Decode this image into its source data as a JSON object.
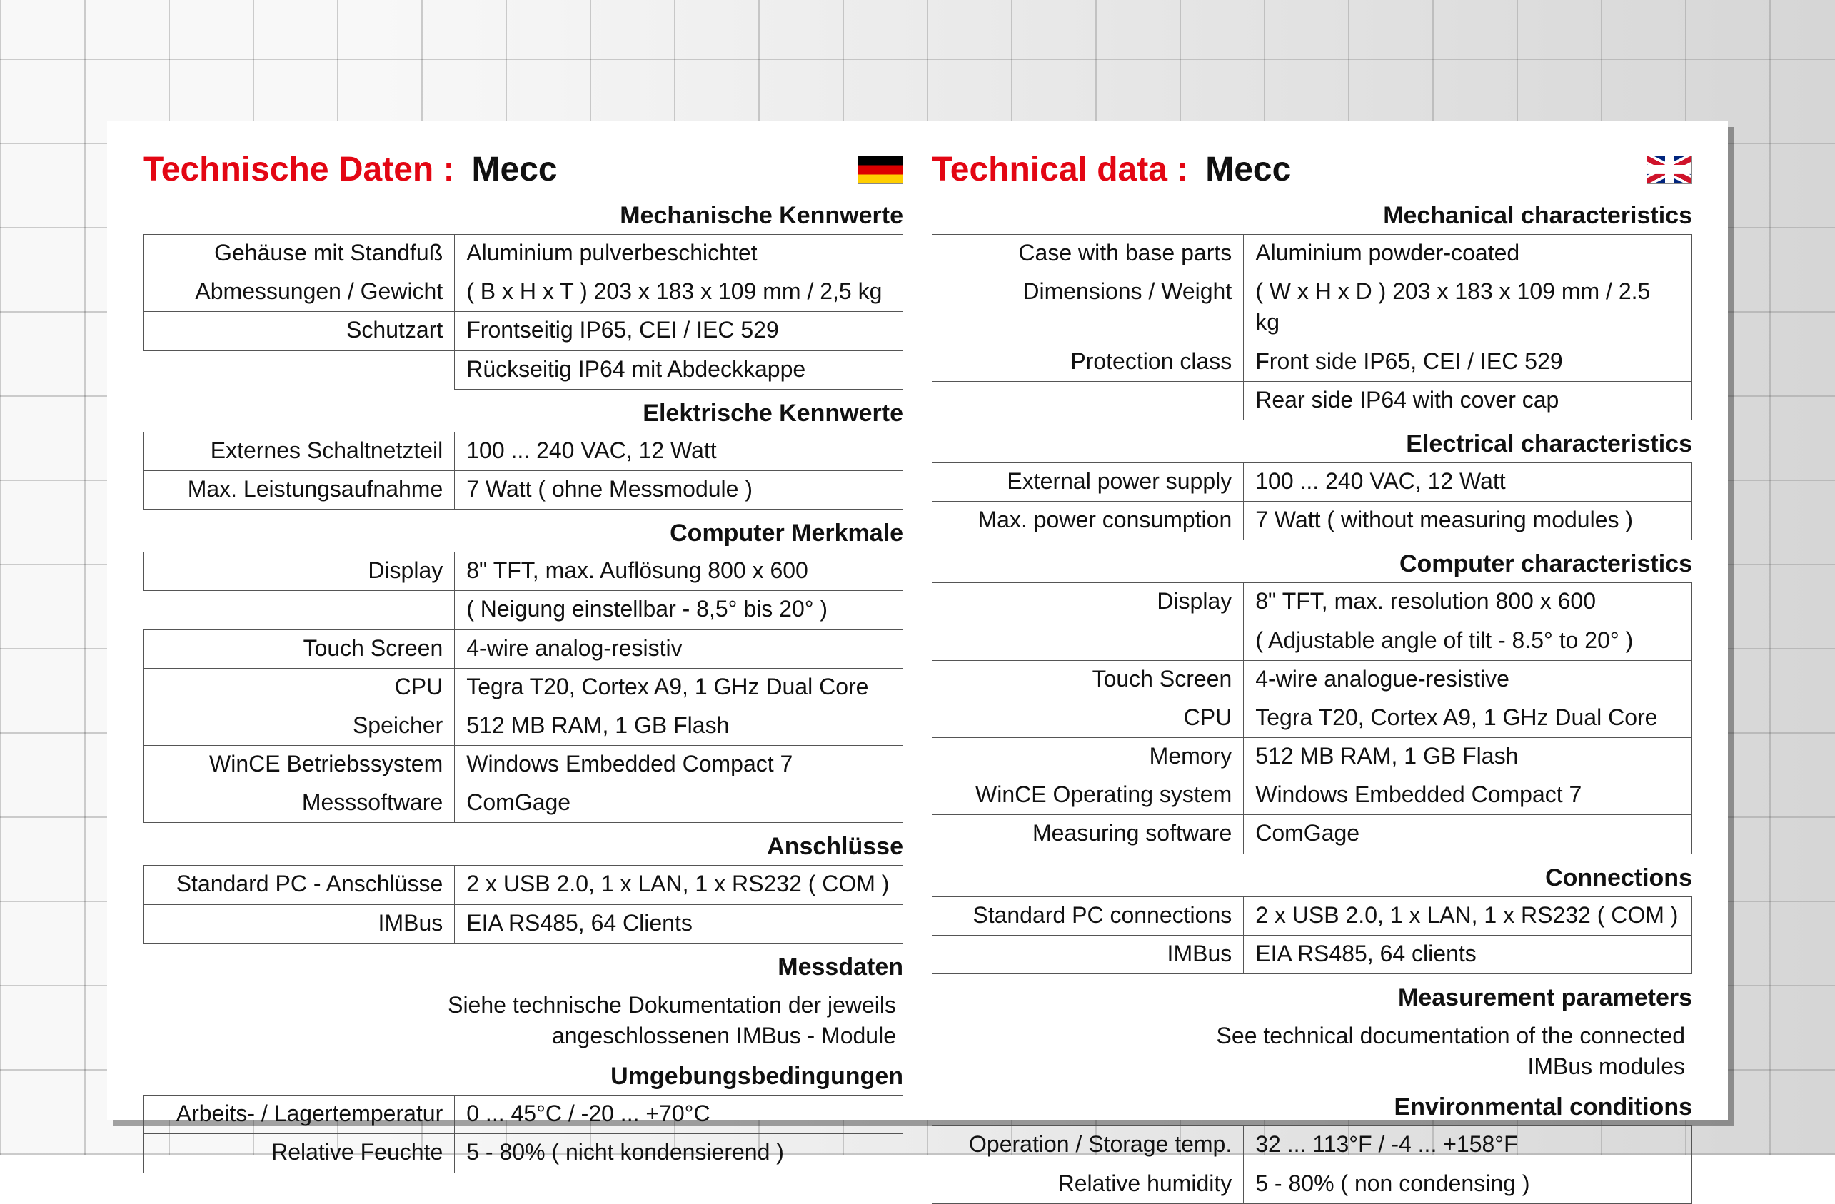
{
  "colors": {
    "accent_red": "#e30613",
    "text": "#111111",
    "border": "#555555",
    "sheet_bg": "#ffffff",
    "shadow": "rgba(0,0,0,0.35)"
  },
  "typography": {
    "title_fontsize_pt": 36,
    "section_fontsize_pt": 26,
    "body_fontsize_pt": 24,
    "font_family": "Arial"
  },
  "de": {
    "title_prefix": "Technische Daten :",
    "title_name": "Mecc",
    "flag": "de",
    "sections": [
      {
        "heading": "Mechanische Kennwerte",
        "rows": [
          {
            "label": "Gehäuse mit Standfuß",
            "value": "Aluminium pulverbeschichtet"
          },
          {
            "label": "Abmessungen / Gewicht",
            "value": "( B x H x T )  203 x 183 x 109 mm / 2,5 kg"
          },
          {
            "label": "Schutzart",
            "value": "Frontseitig IP65, CEI / IEC 529"
          },
          {
            "label": "",
            "value": "Rückseitig IP64 mit Abdeckkappe",
            "continuation": true
          }
        ]
      },
      {
        "heading": "Elektrische Kennwerte",
        "rows": [
          {
            "label": "Externes Schaltnetzteil",
            "value": "100 ... 240 VAC, 12 Watt"
          },
          {
            "label": "Max. Leistungsaufnahme",
            "value": "7 Watt  ( ohne Messmodule )"
          }
        ]
      },
      {
        "heading": "Computer Merkmale",
        "rows": [
          {
            "label": "Display",
            "value": "8\" TFT, max. Auflösung 800 x 600"
          },
          {
            "label": "",
            "value": "( Neigung einstellbar - 8,5° bis 20° )",
            "continuation": true
          },
          {
            "label": "Touch Screen",
            "value": "4-wire analog-resistiv"
          },
          {
            "label": "CPU",
            "value": "Tegra T20, Cortex A9, 1 GHz Dual Core"
          },
          {
            "label": "Speicher",
            "value": "512 MB RAM, 1 GB Flash"
          },
          {
            "label": "WinCE Betriebssystem",
            "value": "Windows Embedded Compact 7"
          },
          {
            "label": "Messsoftware",
            "value": "ComGage"
          }
        ]
      },
      {
        "heading": "Anschlüsse",
        "rows": [
          {
            "label": "Standard PC - Anschlüsse",
            "value": "2 x USB 2.0, 1 x LAN, 1 x RS232 ( COM )"
          },
          {
            "label": "IMBus",
            "value": "EIA RS485, 64 Clients"
          }
        ]
      },
      {
        "heading": "Messdaten",
        "note_lines": [
          "Siehe technische Dokumentation der jeweils",
          "angeschlossenen IMBus - Module"
        ]
      },
      {
        "heading": "Umgebungsbedingungen",
        "rows": [
          {
            "label": "Arbeits- / Lagertemperatur",
            "value": "0 ... 45°C / -20 ... +70°C"
          },
          {
            "label": "Relative Feuchte",
            "value": "5 - 80% ( nicht kondensierend )"
          }
        ]
      }
    ]
  },
  "en": {
    "title_prefix": "Technical data :",
    "title_name": "Mecc",
    "flag": "uk",
    "sections": [
      {
        "heading": "Mechanical characteristics",
        "rows": [
          {
            "label": "Case with base parts",
            "value": "Aluminium powder-coated"
          },
          {
            "label": "Dimensions / Weight",
            "value": "( W x H x D ) 203 x 183 x 109 mm / 2.5 kg"
          },
          {
            "label": "Protection class",
            "value": "Front side IP65, CEI / IEC 529"
          },
          {
            "label": "",
            "value": "Rear side IP64 with cover cap",
            "continuation": true
          }
        ]
      },
      {
        "heading": "Electrical characteristics",
        "rows": [
          {
            "label": "External power supply",
            "value": "100 ... 240 VAC, 12 Watt"
          },
          {
            "label": "Max. power consumption",
            "value": "7 Watt  ( without measuring modules )"
          }
        ]
      },
      {
        "heading": "Computer characteristics",
        "rows": [
          {
            "label": "Display",
            "value": "8\" TFT, max. resolution 800 x 600"
          },
          {
            "label": "",
            "value": "( Adjustable angle of tilt - 8.5° to 20° )",
            "continuation": true
          },
          {
            "label": "Touch Screen",
            "value": "4-wire analogue-resistive"
          },
          {
            "label": "CPU",
            "value": "Tegra T20, Cortex A9, 1 GHz Dual Core"
          },
          {
            "label": "Memory",
            "value": "512 MB RAM, 1 GB Flash"
          },
          {
            "label": "WinCE Operating system",
            "value": "Windows Embedded Compact 7"
          },
          {
            "label": "Measuring software",
            "value": "ComGage"
          }
        ]
      },
      {
        "heading": "Connections",
        "rows": [
          {
            "label": "Standard PC connections",
            "value": "2 x USB 2.0, 1 x LAN, 1 x RS232 ( COM )"
          },
          {
            "label": "IMBus",
            "value": "EIA RS485, 64 clients"
          }
        ]
      },
      {
        "heading": "Measurement parameters",
        "note_lines": [
          "See technical documentation of the connected",
          "IMBus modules"
        ]
      },
      {
        "heading": "Environmental conditions",
        "rows": [
          {
            "label": "Operation / Storage temp.",
            "value": "32 ... 113°F / -4 ... +158°F"
          },
          {
            "label": "Relative humidity",
            "value": "5 - 80% ( non condensing )"
          }
        ]
      }
    ]
  }
}
